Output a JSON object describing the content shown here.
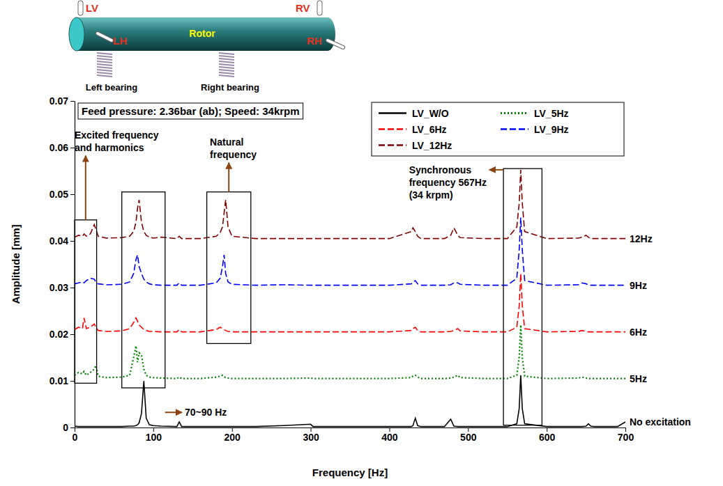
{
  "chart_data": {
    "type": "line",
    "title": "Feed pressure: 2.36bar (ab); Speed: 34krpm",
    "x_label": "Frequency [Hz]",
    "y_label": "Amplitude [mm]",
    "x": [
      0,
      5,
      10,
      12,
      15,
      20,
      25,
      27,
      30,
      40,
      60,
      70,
      75,
      78,
      80,
      82,
      85,
      88,
      91,
      95,
      100,
      110,
      130,
      133,
      136,
      160,
      180,
      185,
      188,
      190,
      192,
      195,
      200,
      230,
      265,
      300,
      303,
      350,
      400,
      428,
      430,
      433,
      436,
      440,
      470,
      478,
      482,
      487,
      490,
      520,
      550,
      562,
      565,
      567,
      569,
      572,
      600,
      640,
      645,
      650,
      653,
      656,
      660,
      690,
      700
    ],
    "series": [
      {
        "name": "LV_W/O",
        "label": "No excitation",
        "color": "#000000",
        "line_style": "solid",
        "values": [
          0.0003,
          0.0002,
          0.0002,
          0.0002,
          0.0002,
          0.0002,
          0.0002,
          0.0002,
          0.0002,
          0.0002,
          0.0002,
          0.0003,
          0.0003,
          0.0004,
          0.0006,
          0.001,
          0.003,
          0.01,
          0.002,
          0.0006,
          0.0004,
          0.0003,
          0.0002,
          0.0012,
          0.0002,
          0.0002,
          0.0002,
          0.0002,
          0.0002,
          0.0002,
          0.0002,
          0.0002,
          0.0002,
          0.0002,
          0.0004,
          0.0007,
          0.0002,
          0.0002,
          0.0002,
          0.0002,
          0.0004,
          0.002,
          0.0004,
          0.0002,
          0.0002,
          0.0018,
          0.0003,
          0.0002,
          0.0002,
          0.0002,
          0.0002,
          0.0008,
          0.004,
          0.0112,
          0.004,
          0.0008,
          0.0002,
          0.0002,
          0.0002,
          0.0003,
          0.0008,
          0.0003,
          0.0002,
          0.0002,
          0.0012
        ]
      },
      {
        "name": "LV_5Hz",
        "label": "5Hz",
        "color": "#008000",
        "line_style": "dotted",
        "values": [
          0.0112,
          0.0118,
          0.0115,
          0.012,
          0.0112,
          0.0118,
          0.0125,
          0.0133,
          0.011,
          0.0107,
          0.0108,
          0.0112,
          0.015,
          0.0175,
          0.014,
          0.016,
          0.0155,
          0.0125,
          0.0112,
          0.0108,
          0.0107,
          0.0106,
          0.0105,
          0.0108,
          0.0105,
          0.0105,
          0.0108,
          0.011,
          0.0112,
          0.0109,
          0.0107,
          0.0106,
          0.0105,
          0.0105,
          0.0105,
          0.0106,
          0.0105,
          0.0105,
          0.0105,
          0.0107,
          0.011,
          0.0112,
          0.0108,
          0.0105,
          0.0105,
          0.0106,
          0.0108,
          0.0112,
          0.0107,
          0.0105,
          0.0105,
          0.0112,
          0.015,
          0.022,
          0.015,
          0.011,
          0.0105,
          0.0106,
          0.0108,
          0.0106,
          0.0105,
          0.0105,
          0.0105,
          0.0105,
          0.0105
        ]
      },
      {
        "name": "LV_6Hz",
        "label": "6Hz",
        "color": "#ff0000",
        "line_style": "dashed",
        "values": [
          0.021,
          0.0215,
          0.0212,
          0.0235,
          0.0212,
          0.0215,
          0.0222,
          0.0215,
          0.0208,
          0.0206,
          0.0207,
          0.0212,
          0.0225,
          0.0235,
          0.0228,
          0.022,
          0.0215,
          0.021,
          0.0208,
          0.0206,
          0.0206,
          0.0205,
          0.0205,
          0.021,
          0.0205,
          0.0205,
          0.021,
          0.0215,
          0.0212,
          0.021,
          0.0208,
          0.0206,
          0.0205,
          0.0205,
          0.0205,
          0.0205,
          0.0205,
          0.0205,
          0.0205,
          0.0208,
          0.0212,
          0.0215,
          0.0208,
          0.0205,
          0.0205,
          0.0206,
          0.0208,
          0.0212,
          0.0207,
          0.0205,
          0.0205,
          0.0215,
          0.026,
          0.033,
          0.026,
          0.0212,
          0.0205,
          0.0206,
          0.0208,
          0.0206,
          0.0205,
          0.0205,
          0.0205,
          0.0205,
          0.0205
        ]
      },
      {
        "name": "LV_9Hz",
        "label": "9Hz",
        "color": "#0000ff",
        "line_style": "dashed",
        "values": [
          0.0308,
          0.031,
          0.0312,
          0.031,
          0.0315,
          0.032,
          0.0318,
          0.0312,
          0.0308,
          0.0306,
          0.0307,
          0.0312,
          0.033,
          0.036,
          0.037,
          0.0345,
          0.033,
          0.0318,
          0.0312,
          0.0308,
          0.0306,
          0.0305,
          0.0305,
          0.031,
          0.0305,
          0.0305,
          0.031,
          0.032,
          0.0345,
          0.037,
          0.033,
          0.0312,
          0.0307,
          0.0305,
          0.0306,
          0.0305,
          0.0305,
          0.0305,
          0.0305,
          0.0308,
          0.0312,
          0.0315,
          0.0308,
          0.0305,
          0.0305,
          0.0306,
          0.031,
          0.031,
          0.0307,
          0.0305,
          0.0305,
          0.032,
          0.038,
          0.045,
          0.038,
          0.0315,
          0.0305,
          0.0306,
          0.031,
          0.0308,
          0.0306,
          0.0305,
          0.0305,
          0.0305,
          0.0305
        ]
      },
      {
        "name": "LV_12Hz",
        "label": "12Hz",
        "color": "#800000",
        "line_style": "dashed",
        "values": [
          0.0408,
          0.0412,
          0.041,
          0.0415,
          0.041,
          0.0415,
          0.0435,
          0.0425,
          0.041,
          0.0406,
          0.0407,
          0.041,
          0.042,
          0.044,
          0.047,
          0.0488,
          0.044,
          0.042,
          0.0412,
          0.0408,
          0.0406,
          0.0408,
          0.0405,
          0.041,
          0.0405,
          0.0405,
          0.041,
          0.0418,
          0.043,
          0.046,
          0.0488,
          0.043,
          0.041,
          0.0405,
          0.0405,
          0.0405,
          0.0405,
          0.0405,
          0.0405,
          0.042,
          0.0428,
          0.042,
          0.041,
          0.0405,
          0.0405,
          0.0412,
          0.0428,
          0.0412,
          0.0407,
          0.0405,
          0.0405,
          0.043,
          0.048,
          0.0552,
          0.048,
          0.042,
          0.0405,
          0.0406,
          0.0408,
          0.0412,
          0.0408,
          0.0405,
          0.0405,
          0.0405,
          0.0405
        ]
      }
    ],
    "xlim": [
      0,
      700
    ],
    "xticks": [
      0,
      100,
      200,
      300,
      400,
      500,
      600,
      700
    ],
    "ylim": [
      0,
      0.07
    ],
    "yticks": [
      0,
      0.01,
      0.02,
      0.03,
      0.04,
      0.05,
      0.06,
      0.07
    ],
    "grid": false,
    "legend": "upper right",
    "annotations": [
      {
        "text": [
          "Excited frequency",
          "and harmonics"
        ],
        "box": {
          "x": [
            0,
            28
          ],
          "y": [
            0.0095,
            0.0445
          ]
        },
        "at": [
          0,
          0.062
        ]
      },
      {
        "text": [
          "70~90 Hz"
        ],
        "box": {
          "x": [
            60,
            115
          ],
          "y": [
            0.0085,
            0.0505
          ]
        },
        "at": [
          140,
          0.0025
        ]
      },
      {
        "text": [
          "Natural",
          "frequency"
        ],
        "box": {
          "x": [
            168,
            224
          ],
          "y": [
            0.018,
            0.0505
          ]
        },
        "at": [
          172,
          0.0605
        ]
      },
      {
        "text": [
          "Synchronous",
          "frequency 567Hz",
          "(34 krpm)"
        ],
        "box": {
          "x": [
            545,
            594
          ],
          "y": [
            0.0005,
            0.0555
          ]
        },
        "at": [
          425,
          0.0545
        ]
      }
    ]
  },
  "diagram": {
    "lv": "LV",
    "rv": "RV",
    "lh": "LH",
    "rh": "RH",
    "rotor": "Rotor",
    "left_bearing": "Left bearing",
    "right_bearing": "Right bearing"
  }
}
